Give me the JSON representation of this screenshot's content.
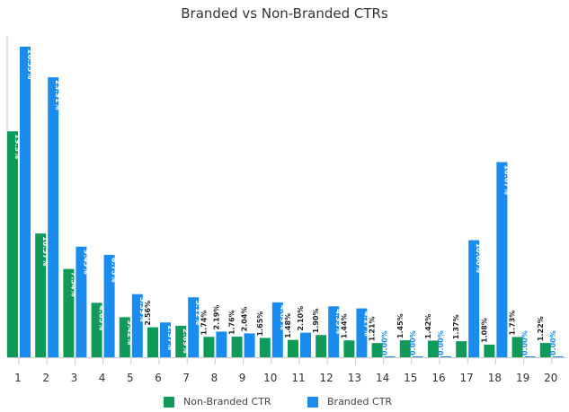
{
  "chart_data": {
    "type": "bar",
    "title": "Branded vs Non-Branded CTRs",
    "xlabel": "",
    "ylabel": "",
    "categories": [
      "1",
      "2",
      "3",
      "4",
      "5",
      "6",
      "7",
      "8",
      "9",
      "10",
      "11",
      "12",
      "13",
      "14",
      "15",
      "16",
      "17",
      "18",
      "19",
      "20"
    ],
    "ylim": [
      0,
      27
    ],
    "grid": false,
    "legend_position": "bottom",
    "series": [
      {
        "name": "Non-Branded CTR",
        "color": "#0f9a5a",
        "values": [
          19.3,
          10.57,
          7.54,
          4.65,
          3.42,
          2.56,
          2.69,
          1.74,
          1.76,
          1.65,
          1.48,
          1.9,
          1.44,
          1.21,
          1.45,
          1.42,
          1.37,
          1.08,
          1.73,
          1.22
        ],
        "labels": [
          "19.3%",
          "10.57%",
          "7.54%",
          "4.65%",
          "3.42%",
          "2.56%",
          "2.69%",
          "1.74%",
          "1.76%",
          "1.65%",
          "1.48%",
          "1.90%",
          "1.44%",
          "1.21%",
          "1.45%",
          "1.42%",
          "1.37%",
          "1.08%",
          "1.73%",
          "1.22%"
        ]
      },
      {
        "name": "Branded CTR",
        "color": "#1a8cf0",
        "values": [
          26.53,
          23.91,
          9.45,
          8.75,
          5.39,
          2.97,
          5.12,
          2.19,
          2.04,
          4.69,
          2.1,
          4.35,
          4.17,
          0.0,
          0.0,
          0.0,
          10.0,
          16.67,
          0.0,
          0.0
        ],
        "labels": [
          "26.53%",
          "23.91%",
          "9.45%",
          "8.75%",
          "5.39%",
          "2.97%",
          "5.12%",
          "2.19%",
          "2.04%",
          "4.69%",
          "2.10%",
          "4.35%",
          "4.17%",
          "0.00%",
          "0.00%",
          "0.00%",
          "10.00%",
          "16.67%",
          "0.00%",
          "0.00%"
        ]
      }
    ]
  }
}
